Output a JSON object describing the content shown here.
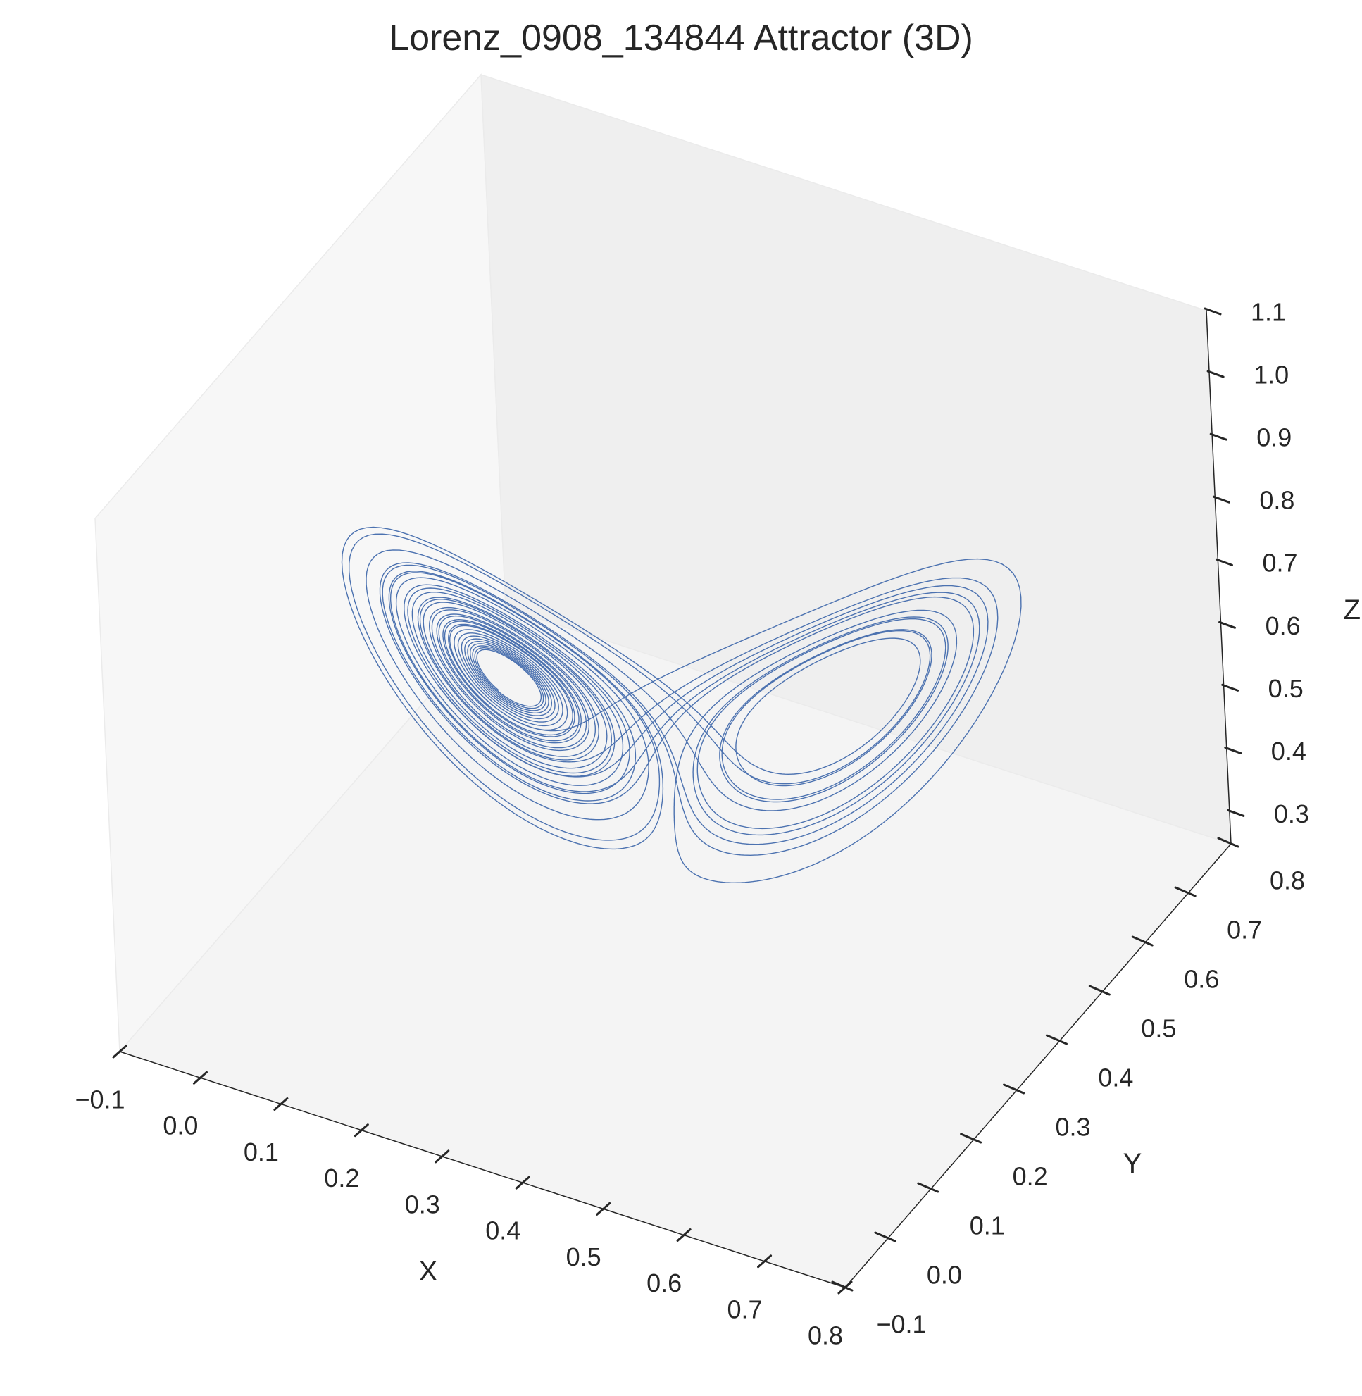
{
  "chart_data": {
    "type": "line",
    "title": "Lorenz_0908_134844 Attractor (3D)",
    "xlabel": "X",
    "ylabel": "Y",
    "zlabel": "Z",
    "xlim": [
      -0.1,
      0.8
    ],
    "ylim": [
      -0.1,
      0.8
    ],
    "zlim": [
      0.25,
      1.1
    ],
    "xticks": [
      "−0.1",
      "0.0",
      "0.1",
      "0.2",
      "0.3",
      "0.4",
      "0.5",
      "0.6",
      "0.7",
      "0.8"
    ],
    "yticks": [
      "−0.1",
      "0.0",
      "0.1",
      "0.2",
      "0.3",
      "0.4",
      "0.5",
      "0.6",
      "0.7",
      "0.8"
    ],
    "zticks": [
      "0.3",
      "0.4",
      "0.5",
      "0.6",
      "0.7",
      "0.8",
      "0.9",
      "1.0",
      "1.1"
    ],
    "grid": false,
    "series_color": "#4c72b0",
    "pane_colors": {
      "floor": "#f4f4f4",
      "left_wall": "#f7f7f7",
      "back_wall": "#efefef"
    }
  }
}
